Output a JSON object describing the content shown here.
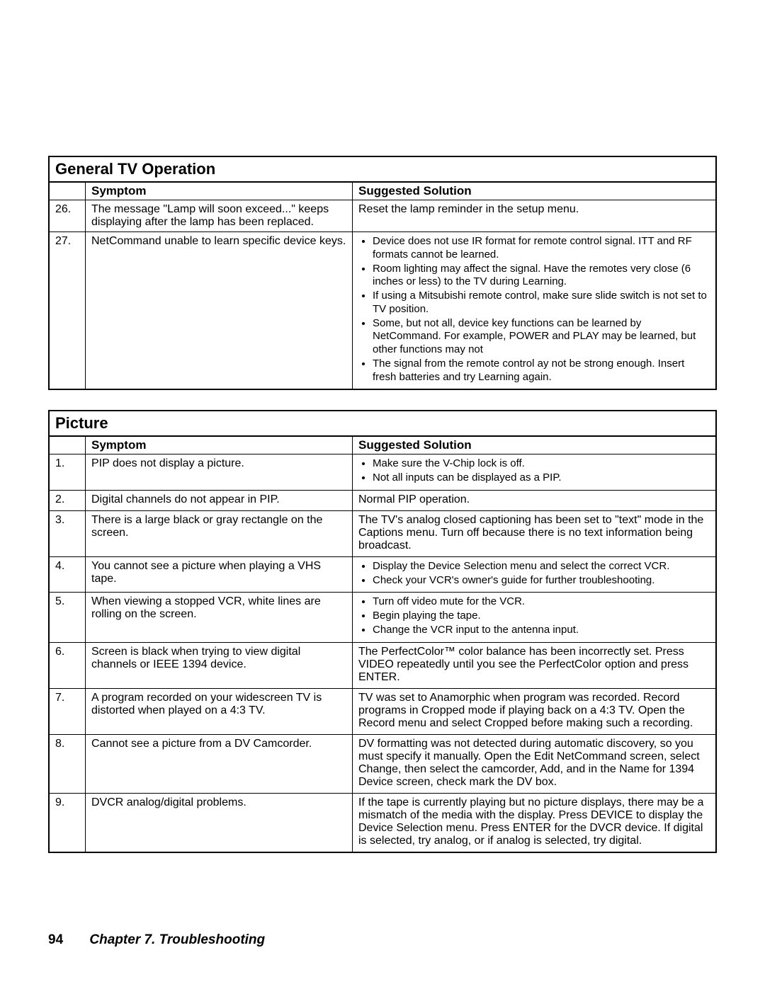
{
  "tables": [
    {
      "title": "General TV Operation",
      "headers": {
        "symptom": "Symptom",
        "solution": "Suggested Solution"
      },
      "rows": [
        {
          "num": "26.",
          "symptom": "The message \"Lamp will soon exceed...\" keeps displaying after the lamp has been replaced.",
          "solution_text": "Reset the lamp reminder in the setup menu."
        },
        {
          "num": "27.",
          "symptom": "NetCommand unable to learn specific device keys.",
          "solution_bullets": [
            "Device does not use IR format for remote control signal. ITT and RF formats cannot be learned.",
            "Room lighting may affect the signal.  Have the remotes very close (6 inches or less) to the TV during Learning.",
            "If using a Mitsubishi remote control, make sure slide switch is not set to TV position.",
            "Some, but not all, device key functions can be learned by NetCommand.  For example, POWER and PLAY may be learned, but other functions may not",
            "The signal from the remote control ay not be strong enough.  Insert fresh batteries and try Learning again."
          ]
        }
      ]
    },
    {
      "title": "Picture",
      "headers": {
        "symptom": "Symptom",
        "solution": "Suggested Solution"
      },
      "rows": [
        {
          "num": "1.",
          "symptom": "PIP does not display a picture.",
          "solution_bullets": [
            "Make sure the V-Chip lock is off.",
            "Not all inputs can be displayed as a PIP."
          ]
        },
        {
          "num": "2.",
          "symptom": "Digital channels do not appear in PIP.",
          "solution_text": "Normal PIP operation."
        },
        {
          "num": "3.",
          "symptom": "There is a large black or gray rectangle on the screen.",
          "solution_text": "The TV's analog closed captioning has been set to \"text\" mode in the Captions menu.  Turn off because there is no text information being broadcast."
        },
        {
          "num": "4.",
          "symptom": "You cannot see a picture when playing a VHS tape.",
          "solution_bullets": [
            "Display the Device Selection menu and select the correct VCR.",
            "Check your VCR's owner's guide for further troubleshooting."
          ]
        },
        {
          "num": "5.",
          "symptom": "When viewing a stopped VCR, white lines are rolling on the screen.",
          "solution_bullets": [
            "Turn off video mute for the VCR.",
            "Begin playing the tape.",
            "Change the VCR input to the antenna input."
          ]
        },
        {
          "num": "6.",
          "symptom": "Screen is black when trying to view digital channels or IEEE 1394 device.",
          "solution_text": "The PerfectColor™ color balance has been incorrectly set.  Press VIDEO repeatedly until you see the PerfectColor option and press ENTER."
        },
        {
          "num": "7.",
          "symptom": "A program recorded on your widescreen TV is distorted when played on a 4:3 TV.",
          "solution_text": "TV was set to Anamorphic when program was recorded.  Record programs in Cropped mode if playing back on a 4:3 TV.  Open the Record menu and select Cropped before making such a recording."
        },
        {
          "num": "8.",
          "symptom": "Cannot see a picture from a DV Camcorder.",
          "solution_text": "DV formatting was not detected during automatic discovery, so you must specify it manually.  Open the Edit NetCommand screen, select Change, then select the camcorder, Add, and in the Name for 1394 Device screen, check mark the DV box."
        },
        {
          "num": "9.",
          "symptom": "DVCR analog/digital problems.",
          "solution_text": "If the tape is currently playing but no picture displays, there may be a mismatch of the media with the display.   Press DEVICE to display the Device Selection menu.  Press ENTER for the DVCR device. If digital is selected, try analog, or if analog is selected, try digital."
        }
      ]
    }
  ],
  "footer": {
    "page_number": "94",
    "chapter": "Chapter 7. Troubleshooting"
  }
}
